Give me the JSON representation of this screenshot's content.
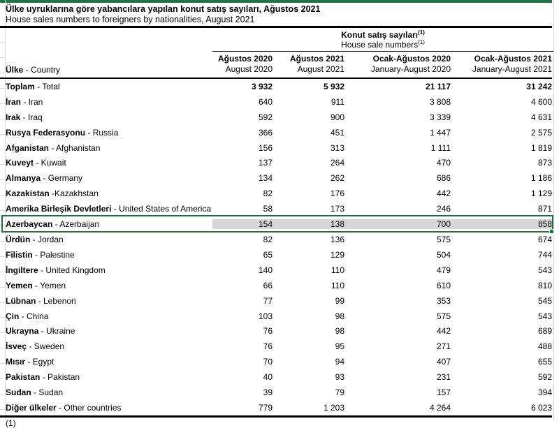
{
  "colors": {
    "accent_green": "#217346",
    "selection_fill": "#D6D6D6",
    "gridline": "#D9D9D9"
  },
  "page": {
    "title_tr": "Ülke uyruklarına göre yabancılara yapılan konut satış sayıları, Ağustos 2021",
    "title_en": "House sales numbers to foreigners by nationalities, August 2021",
    "footnote_clipped": "(1)"
  },
  "table": {
    "group_header": {
      "tr": "Konut satış sayıları",
      "en": "House sale numbers",
      "footnote_mark": "(1)"
    },
    "country_header": {
      "tr": "Ülke",
      "en": " - Country"
    },
    "columns": [
      {
        "tr": "Ağustos 2020",
        "en": "August 2020"
      },
      {
        "tr": "Ağustos 2021",
        "en": "August 2021"
      },
      {
        "tr": "Ocak-Ağustos 2020",
        "en": "January-August 2020"
      },
      {
        "tr": "Ocak-Ağustos 2021",
        "en": "January-August 2021"
      }
    ],
    "rows": [
      {
        "tr": "Toplam",
        "en": " - Total",
        "values": [
          "3 932",
          "5 932",
          "21 117",
          "31 242"
        ],
        "bold_values": true,
        "selected": false
      },
      {
        "tr": "İran",
        "en": " - Iran",
        "values": [
          "640",
          "911",
          "3 808",
          "4 600"
        ],
        "bold_values": false,
        "selected": false
      },
      {
        "tr": "Irak",
        "en": " - Iraq",
        "values": [
          "592",
          "900",
          "3 339",
          "4 631"
        ],
        "bold_values": false,
        "selected": false
      },
      {
        "tr": "Rusya Federasyonu",
        "en": " - Russia",
        "values": [
          "366",
          "451",
          "1 447",
          "2 575"
        ],
        "bold_values": false,
        "selected": false
      },
      {
        "tr": "Afganistan",
        "en": " - Afghanistan",
        "values": [
          "156",
          "313",
          "1 111",
          "1 819"
        ],
        "bold_values": false,
        "selected": false
      },
      {
        "tr": "Kuveyt",
        "en": " - Kuwait",
        "values": [
          "137",
          "264",
          "470",
          "873"
        ],
        "bold_values": false,
        "selected": false
      },
      {
        "tr": "Almanya",
        "en": " - Germany",
        "values": [
          "134",
          "262",
          "686",
          "1 186"
        ],
        "bold_values": false,
        "selected": false
      },
      {
        "tr": "Kazakistan",
        "en": " -Kazakhstan",
        "values": [
          "82",
          "176",
          "442",
          "1 129"
        ],
        "bold_values": false,
        "selected": false
      },
      {
        "tr": "Amerika Birleşik Devletleri",
        "en": " - United States of America",
        "values": [
          "58",
          "173",
          "246",
          "871"
        ],
        "bold_values": false,
        "selected": false
      },
      {
        "tr": "Azerbaycan",
        "en": " - Azerbaijan",
        "values": [
          "154",
          "138",
          "700",
          "858"
        ],
        "bold_values": false,
        "selected": true
      },
      {
        "tr": "Ürdün",
        "en": " - Jordan",
        "values": [
          "82",
          "136",
          "575",
          "674"
        ],
        "bold_values": false,
        "selected": false
      },
      {
        "tr": "Filistin",
        "en": " - Palestine",
        "values": [
          "65",
          "129",
          "504",
          "744"
        ],
        "bold_values": false,
        "selected": false
      },
      {
        "tr": "İngiltere",
        "en": " - United Kingdom",
        "values": [
          "140",
          "110",
          "479",
          "543"
        ],
        "bold_values": false,
        "selected": false
      },
      {
        "tr": "Yemen",
        "en": " - Yemen",
        "values": [
          "66",
          "110",
          "610",
          "810"
        ],
        "bold_values": false,
        "selected": false
      },
      {
        "tr": "Lübnan",
        "en": " - Lebenon",
        "values": [
          "77",
          "99",
          "353",
          "545"
        ],
        "bold_values": false,
        "selected": false
      },
      {
        "tr": "Çin",
        "en": " - China",
        "values": [
          "103",
          "98",
          "575",
          "543"
        ],
        "bold_values": false,
        "selected": false
      },
      {
        "tr": "Ukrayna",
        "en": " - Ukraine",
        "values": [
          "76",
          "98",
          "442",
          "689"
        ],
        "bold_values": false,
        "selected": false
      },
      {
        "tr": "İsveç",
        "en": " - Sweden",
        "values": [
          "76",
          "95",
          "271",
          "488"
        ],
        "bold_values": false,
        "selected": false
      },
      {
        "tr": "Mısır",
        "en": " - Egypt",
        "values": [
          "70",
          "94",
          "407",
          "655"
        ],
        "bold_values": false,
        "selected": false
      },
      {
        "tr": "Pakistan",
        "en": " - Pakistan",
        "values": [
          "40",
          "93",
          "231",
          "592"
        ],
        "bold_values": false,
        "selected": false
      },
      {
        "tr": "Sudan",
        "en": " - Sudan",
        "values": [
          "39",
          "79",
          "157",
          "394"
        ],
        "bold_values": false,
        "selected": false
      },
      {
        "tr": "Diğer ülkeler",
        "en": " - Other countries",
        "values": [
          "779",
          "1 203",
          "4 264",
          "6 023"
        ],
        "bold_values": false,
        "selected": false
      }
    ]
  }
}
